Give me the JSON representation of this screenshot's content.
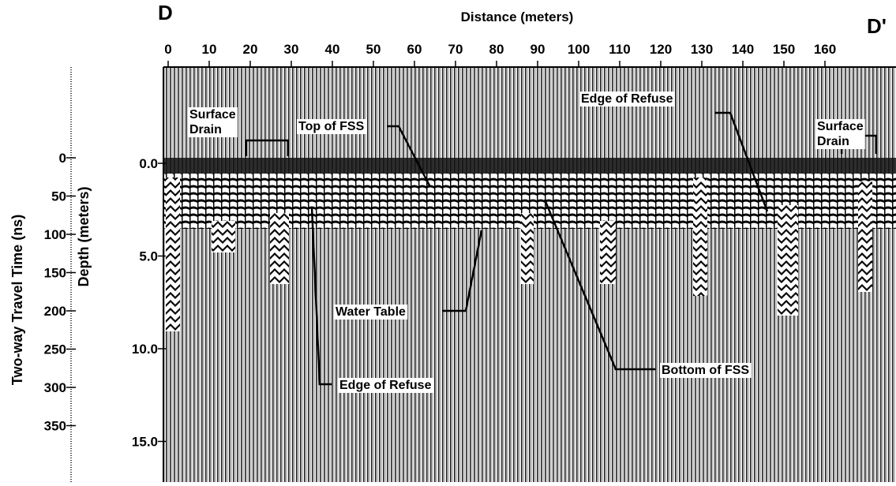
{
  "header": {
    "left_label": "D",
    "right_label": "D'",
    "x_axis_title": "Distance (meters)"
  },
  "x_axis": {
    "ticks": [
      "0",
      "10",
      "20",
      "30",
      "40",
      "50",
      "60",
      "70",
      "80",
      "90",
      "100",
      "110",
      "120",
      "130",
      "140",
      "150",
      "160"
    ]
  },
  "y_axis_time": {
    "title": "Two-way Travel Time (ns)",
    "ticks": [
      "0",
      "50",
      "100",
      "150",
      "200",
      "250",
      "300",
      "350"
    ]
  },
  "y_axis_depth": {
    "title": "Depth (meters)",
    "ticks": [
      "0.0",
      "5.0",
      "10.0",
      "15.0"
    ]
  },
  "annotations": [
    {
      "lines": [
        "Surface",
        "Drain"
      ]
    },
    {
      "lines": [
        "Top of FSS"
      ]
    },
    {
      "lines": [
        "Edge of Refuse"
      ]
    },
    {
      "lines": [
        "Surface",
        "Drain"
      ]
    },
    {
      "lines": [
        "Water Table"
      ]
    },
    {
      "lines": [
        "Edge of Refuse"
      ]
    },
    {
      "lines": [
        "Bottom of FSS"
      ]
    }
  ]
}
